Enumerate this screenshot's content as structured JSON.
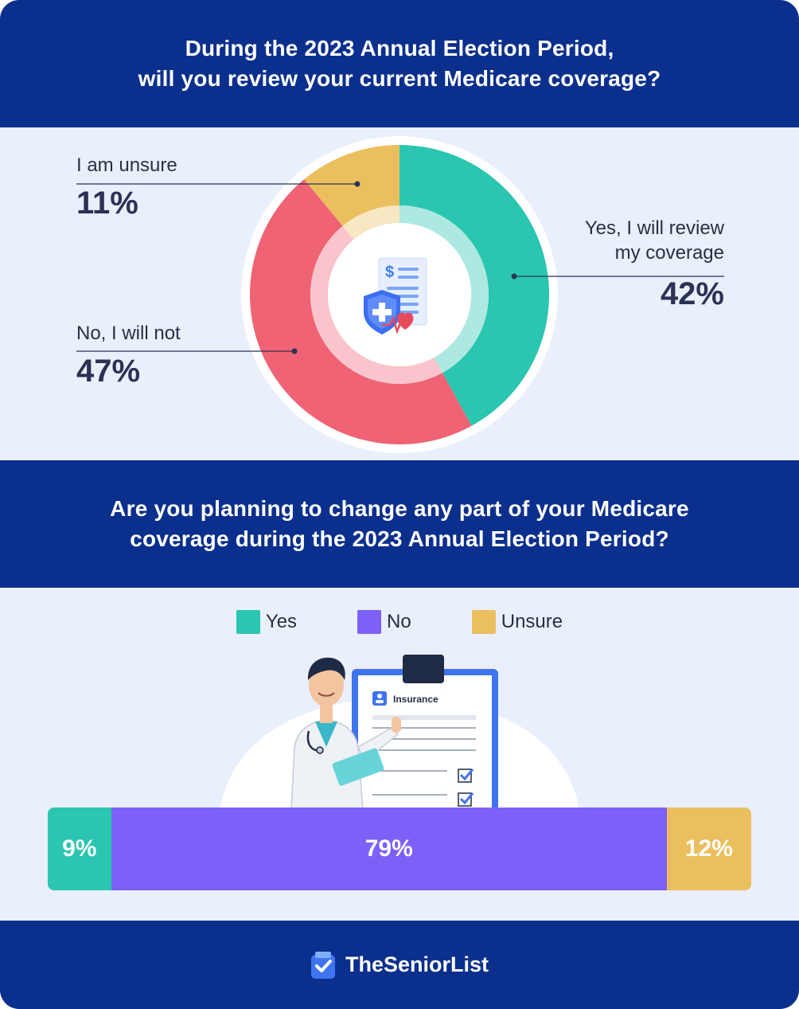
{
  "section1": {
    "title_line1": "During the 2023 Annual Election Period,",
    "title_line2": "will you review your current Medicare coverage?"
  },
  "section2": {
    "title_line1": "Are you planning to change any part of your Medicare",
    "title_line2": "coverage during the 2023 Annual Election Period?",
    "illustration_label": "Insurance"
  },
  "footer": {
    "brand": "TheSeniorList"
  },
  "icons": [
    "medical-bill-icon",
    "shield-cross-icon",
    "heart-pulse-icon",
    "clipboard-icon",
    "checkbox-icon",
    "checklist-logo-icon"
  ],
  "chart_data": [
    {
      "type": "pie",
      "title": "During the 2023 Annual Election Period, will you review your current Medicare coverage?",
      "labels": [
        "Yes, I will review my coverage",
        "No, I will not",
        "I am unsure"
      ],
      "label_lines": [
        [
          "Yes, I will review",
          "my coverage"
        ],
        [
          "No, I will not"
        ],
        [
          "I am unsure"
        ]
      ],
      "values": [
        42,
        47,
        11
      ],
      "value_labels": [
        "42%",
        "47%",
        "11%"
      ],
      "colors": [
        "#2ac6b0",
        "#ef6375",
        "#ebbf5e"
      ],
      "donut": true
    },
    {
      "type": "bar",
      "orientation": "horizontal-stacked",
      "title": "Are you planning to change any part of your Medicare coverage during the 2023 Annual Election Period?",
      "series": [
        {
          "name": "Yes",
          "values": [
            9
          ],
          "label": "9%",
          "color": "#2ac6b0"
        },
        {
          "name": "No",
          "values": [
            79
          ],
          "label": "79%",
          "color": "#7d60f8"
        },
        {
          "name": "Unsure",
          "values": [
            12
          ],
          "label": "12%",
          "color": "#ebbf5e"
        }
      ],
      "legend_position": "top-center"
    }
  ]
}
